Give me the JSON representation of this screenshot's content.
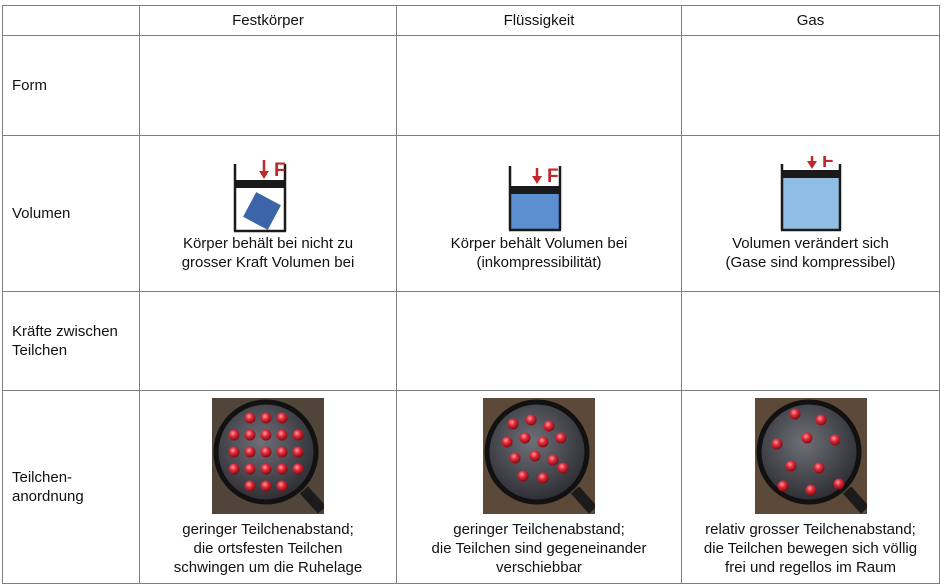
{
  "header": {
    "corner": "",
    "col1": "Festkörper",
    "col2": "Flüssigkeit",
    "col3": "Gas"
  },
  "rows": {
    "form": {
      "label": "Form"
    },
    "volumen": {
      "label": "Volumen",
      "force_symbol": "F",
      "fest_caption": [
        "Körper behält bei nicht zu",
        "grosser Kraft Volumen bei"
      ],
      "fluessig_caption": [
        "Körper behält Volumen bei",
        "(inkompressibilität)"
      ],
      "gas_caption": [
        "Volumen verändert sich",
        "(Gase sind kompressibel)"
      ]
    },
    "kraefte": {
      "label_lines": [
        "Kräfte zwischen",
        "Teilchen"
      ]
    },
    "anordnung": {
      "label_lines": [
        "Teilchen-",
        "anordnung"
      ],
      "fest_caption": [
        "geringer Teilchenabstand;",
        "die ortsfesten Teilchen",
        "schwingen um die Ruhelage"
      ],
      "fluessig_caption": [
        "geringer Teilchenabstand;",
        "die Teilchen sind gegeneinander",
        "verschiebbar"
      ],
      "gas_caption": [
        "relativ grosser Teilchenabstand;",
        "die Teilchen bewegen sich völlig",
        "frei und regellos im Raum"
      ]
    }
  },
  "colors": {
    "arrow": "#c0292b",
    "solid_block": "#3b65a8",
    "liquid": "#5b8fcf",
    "gas": "#8fbde3",
    "piston": "#1a1a1a",
    "particle": "#d4222e"
  },
  "icons": [
    "piston-container-icon",
    "magnifier-particles-icon"
  ]
}
